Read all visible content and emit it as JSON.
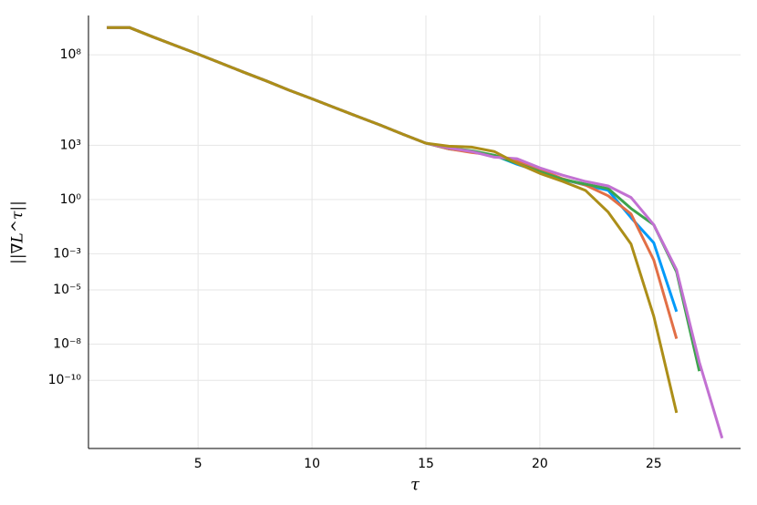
{
  "chart_data": {
    "type": "line",
    "xlabel": "τ",
    "ylabel": "||∇L^τ||",
    "x": [
      1,
      2,
      3,
      4,
      5,
      6,
      7,
      8,
      9,
      10,
      11,
      12,
      13,
      14,
      15,
      16,
      17,
      18,
      19,
      20,
      21,
      22,
      23,
      24,
      25,
      26,
      27,
      28
    ],
    "xlim": [
      0.19,
      28.81
    ],
    "xticks": [
      5,
      10,
      15,
      20,
      25
    ],
    "ylim": [
      1.7e-14,
      15000000000.0
    ],
    "yscale": "log",
    "yticks": [
      {
        "value": 100000000.0,
        "label": "10⁸"
      },
      {
        "value": 1000.0,
        "label": "10³"
      },
      {
        "value": 1,
        "label": "10⁰"
      },
      {
        "value": 0.001,
        "label": "10⁻³"
      },
      {
        "value": 1e-05,
        "label": "10⁻⁵"
      },
      {
        "value": 1e-08,
        "label": "10⁻⁸"
      },
      {
        "value": 1e-10,
        "label": "10⁻¹⁰"
      }
    ],
    "grid": true,
    "series": [
      {
        "color": "#009af9",
        "values": [
          3200000000.0,
          3200000000.0,
          1000000000.0,
          330000000.0,
          110000000.0,
          35000000.0,
          11000000.0,
          3600000.0,
          1100000.0,
          370000.0,
          120000.0,
          39000.0,
          13000.0,
          4000.0,
          1300.0,
          630,
          450,
          280,
          89,
          35,
          13,
          6.3,
          3.2,
          0.1,
          0.004,
          6.3e-07,
          null,
          null
        ]
      },
      {
        "color": "#e26f46",
        "values": [
          3200000000.0,
          3200000000.0,
          1000000000.0,
          330000000.0,
          110000000.0,
          35000000.0,
          11000000.0,
          3600000.0,
          1100000.0,
          370000.0,
          120000.0,
          39000.0,
          13000.0,
          4000.0,
          1300.0,
          630,
          400,
          280,
          130,
          45,
          14,
          6.3,
          1.6,
          0.16,
          0.00045,
          2e-08,
          null,
          null
        ]
      },
      {
        "color": "#3da44d",
        "values": [
          3200000000.0,
          3200000000.0,
          1000000000.0,
          330000000.0,
          110000000.0,
          35000000.0,
          11000000.0,
          3600000.0,
          1100000.0,
          370000.0,
          120000.0,
          39000.0,
          13000.0,
          4000.0,
          1300.0,
          710,
          500,
          280,
          100,
          35,
          13,
          7.1,
          4,
          0.32,
          0.04,
          0.0001,
          3.2e-10,
          null
        ]
      },
      {
        "color": "#c271d2",
        "values": [
          3200000000.0,
          3200000000.0,
          1000000000.0,
          330000000.0,
          110000000.0,
          35000000.0,
          11000000.0,
          3600000.0,
          1100000.0,
          370000.0,
          120000.0,
          39000.0,
          13000.0,
          4000.0,
          1300.0,
          710,
          450,
          220,
          180,
          56,
          22,
          10,
          5.6,
          1.3,
          0.04,
          0.00013,
          1e-09,
          6.3e-14
        ]
      },
      {
        "color": "#ac8e18",
        "values": [
          3200000000.0,
          3200000000.0,
          1000000000.0,
          330000000.0,
          110000000.0,
          35000000.0,
          11000000.0,
          3600000.0,
          1100000.0,
          370000.0,
          120000.0,
          39000.0,
          13000.0,
          4000.0,
          1300.0,
          890,
          790,
          450,
          100,
          28,
          10,
          3.2,
          0.2,
          0.0035,
          3.5e-07,
          1.6e-12,
          null,
          null
        ]
      }
    ]
  }
}
